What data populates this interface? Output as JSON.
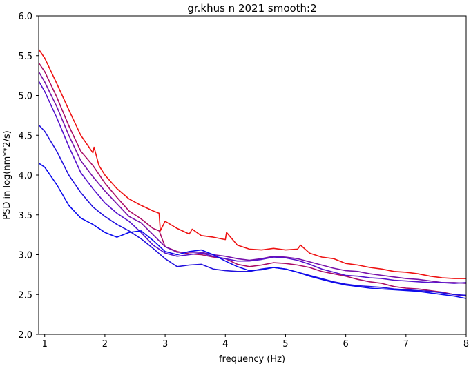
{
  "chart_data": {
    "type": "line",
    "title": "gr.khus n 2021 smooth:2",
    "xlabel": "frequency (Hz)",
    "ylabel": "PSD in log(nm**2/s)",
    "xlim": [
      0.9,
      8.0
    ],
    "ylim": [
      2.0,
      6.0
    ],
    "xticks": [
      1,
      2,
      3,
      4,
      5,
      6,
      7,
      8
    ],
    "yticks": [
      2.0,
      2.5,
      3.0,
      3.5,
      4.0,
      4.5,
      5.0,
      5.5,
      6.0
    ],
    "xtick_labels": [
      "1",
      "2",
      "3",
      "4",
      "5",
      "6",
      "7",
      "8"
    ],
    "ytick_labels": [
      "2.0",
      "2.5",
      "3.0",
      "3.5",
      "4.0",
      "4.5",
      "5.0",
      "5.5",
      "6.0"
    ],
    "grid": false,
    "legend": "none",
    "series": [
      {
        "color": "#ee1111",
        "x": [
          0.9,
          1.0,
          1.2,
          1.4,
          1.6,
          1.8,
          1.82,
          1.9,
          2.0,
          2.2,
          2.4,
          2.6,
          2.8,
          2.9,
          2.92,
          3.0,
          3.2,
          3.4,
          3.45,
          3.6,
          3.8,
          4.0,
          4.02,
          4.2,
          4.4,
          4.6,
          4.8,
          5.0,
          5.2,
          5.25,
          5.4,
          5.6,
          5.8,
          6.0,
          6.2,
          6.4,
          6.6,
          6.8,
          7.0,
          7.2,
          7.4,
          7.6,
          7.8,
          8.0
        ],
        "y": [
          5.58,
          5.47,
          5.15,
          4.82,
          4.5,
          4.28,
          4.35,
          4.12,
          4.0,
          3.83,
          3.7,
          3.62,
          3.55,
          3.52,
          3.3,
          3.42,
          3.33,
          3.26,
          3.32,
          3.24,
          3.22,
          3.19,
          3.28,
          3.12,
          3.07,
          3.06,
          3.08,
          3.06,
          3.07,
          3.12,
          3.02,
          2.97,
          2.95,
          2.89,
          2.87,
          2.84,
          2.82,
          2.79,
          2.78,
          2.76,
          2.73,
          2.71,
          2.7,
          2.7
        ]
      },
      {
        "color": "#aa0c66",
        "x": [
          0.9,
          1.0,
          1.2,
          1.4,
          1.6,
          1.8,
          2.0,
          2.2,
          2.4,
          2.6,
          2.8,
          2.9,
          3.0,
          3.2,
          3.4,
          3.6,
          3.8,
          4.0,
          4.2,
          4.4,
          4.6,
          4.8,
          5.0,
          5.2,
          5.4,
          5.6,
          5.8,
          6.0,
          6.2,
          6.4,
          6.6,
          6.8,
          7.0,
          7.2,
          7.4,
          7.6,
          7.8,
          8.0
        ],
        "y": [
          5.41,
          5.3,
          4.98,
          4.62,
          4.3,
          4.12,
          3.9,
          3.72,
          3.55,
          3.45,
          3.33,
          3.3,
          3.1,
          3.04,
          3.01,
          3.0,
          2.97,
          2.95,
          2.88,
          2.85,
          2.87,
          2.9,
          2.89,
          2.87,
          2.84,
          2.79,
          2.76,
          2.73,
          2.69,
          2.66,
          2.64,
          2.6,
          2.58,
          2.57,
          2.55,
          2.53,
          2.5,
          2.48
        ]
      },
      {
        "color": "#7711aa",
        "x": [
          0.9,
          1.0,
          1.2,
          1.4,
          1.6,
          1.8,
          2.0,
          2.2,
          2.4,
          2.6,
          2.8,
          3.0,
          3.2,
          3.4,
          3.6,
          3.8,
          4.0,
          4.2,
          4.4,
          4.6,
          4.8,
          5.0,
          5.2,
          5.4,
          5.6,
          5.8,
          6.0,
          6.2,
          6.4,
          6.6,
          6.8,
          7.0,
          7.2,
          7.4,
          7.6,
          7.8,
          8.0
        ],
        "y": [
          5.3,
          5.17,
          4.86,
          4.5,
          4.18,
          3.98,
          3.8,
          3.64,
          3.48,
          3.4,
          3.25,
          3.1,
          3.03,
          3.03,
          3.03,
          3.0,
          2.98,
          2.95,
          2.93,
          2.95,
          2.98,
          2.97,
          2.95,
          2.91,
          2.87,
          2.83,
          2.8,
          2.79,
          2.76,
          2.74,
          2.72,
          2.7,
          2.69,
          2.67,
          2.65,
          2.65,
          2.64
        ]
      },
      {
        "color": "#5511cc",
        "x": [
          0.9,
          1.0,
          1.2,
          1.4,
          1.6,
          1.8,
          2.0,
          2.2,
          2.4,
          2.6,
          2.8,
          3.0,
          3.2,
          3.4,
          3.6,
          3.8,
          4.0,
          4.2,
          4.4,
          4.6,
          4.8,
          5.0,
          5.2,
          5.4,
          5.6,
          5.8,
          6.0,
          6.2,
          6.4,
          6.6,
          6.8,
          7.0,
          7.2,
          7.4,
          7.6,
          7.8,
          8.0
        ],
        "y": [
          5.18,
          5.05,
          4.72,
          4.36,
          4.03,
          3.83,
          3.65,
          3.52,
          3.42,
          3.28,
          3.12,
          3.02,
          2.98,
          3.0,
          3.02,
          2.98,
          2.95,
          2.92,
          2.92,
          2.94,
          2.97,
          2.96,
          2.93,
          2.88,
          2.82,
          2.78,
          2.74,
          2.73,
          2.71,
          2.7,
          2.68,
          2.67,
          2.66,
          2.65,
          2.65,
          2.64,
          2.65
        ]
      },
      {
        "color": "#2211dd",
        "x": [
          0.9,
          1.0,
          1.2,
          1.4,
          1.6,
          1.8,
          2.0,
          2.2,
          2.4,
          2.6,
          2.8,
          3.0,
          3.2,
          3.4,
          3.6,
          3.8,
          4.0,
          4.2,
          4.4,
          4.6,
          4.8,
          5.0,
          5.2,
          5.4,
          5.6,
          5.8,
          6.0,
          6.2,
          6.4,
          6.6,
          6.8,
          7.0,
          7.2,
          7.4,
          7.6,
          7.8,
          8.0
        ],
        "y": [
          4.63,
          4.55,
          4.3,
          4.0,
          3.78,
          3.6,
          3.48,
          3.38,
          3.3,
          3.2,
          3.08,
          2.95,
          2.85,
          2.87,
          2.88,
          2.82,
          2.8,
          2.79,
          2.79,
          2.82,
          2.84,
          2.82,
          2.78,
          2.74,
          2.7,
          2.66,
          2.63,
          2.61,
          2.6,
          2.59,
          2.57,
          2.56,
          2.55,
          2.54,
          2.52,
          2.5,
          2.49
        ]
      },
      {
        "color": "#0a0aee",
        "x": [
          0.9,
          1.0,
          1.2,
          1.4,
          1.6,
          1.8,
          2.0,
          2.2,
          2.4,
          2.6,
          2.8,
          3.0,
          3.2,
          3.4,
          3.6,
          3.8,
          4.0,
          4.2,
          4.4,
          4.6,
          4.8,
          5.0,
          5.2,
          5.4,
          5.6,
          5.8,
          6.0,
          6.2,
          6.4,
          6.6,
          6.8,
          7.0,
          7.2,
          7.4,
          7.6,
          7.8,
          8.0
        ],
        "y": [
          4.15,
          4.1,
          3.88,
          3.62,
          3.46,
          3.38,
          3.28,
          3.22,
          3.28,
          3.3,
          3.18,
          3.04,
          3.0,
          3.04,
          3.06,
          3.0,
          2.92,
          2.85,
          2.8,
          2.81,
          2.84,
          2.82,
          2.78,
          2.73,
          2.69,
          2.65,
          2.62,
          2.6,
          2.58,
          2.57,
          2.56,
          2.55,
          2.54,
          2.52,
          2.5,
          2.48,
          2.45
        ]
      }
    ]
  }
}
